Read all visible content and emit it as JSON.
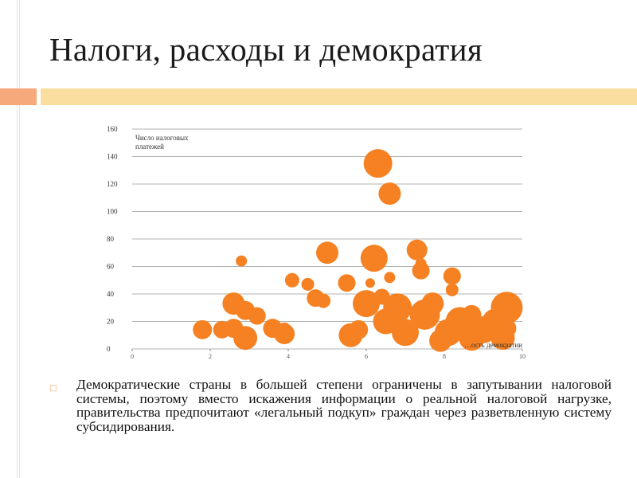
{
  "slide": {
    "title": "Налоги, расходы и демократия",
    "bullet_icon": "square-bullet-icon",
    "bullet_text": "Демократические страны в большей степени ограничены в запутывании налоговой системы, поэтому вместо искажения информации о реальной налоговой нагрузке, правительства предпочитают «легальный подкуп» граждан через разветвленную систему субсидирования.",
    "colors": {
      "accent_bar_left": "#f6a97a",
      "accent_bar_right": "#f9dea0",
      "bubble": "#f58122"
    }
  },
  "chart_data": {
    "type": "scatter",
    "ylabel": "Число налоговых платежей",
    "xlabel": "…ость демократии",
    "ylim": [
      0,
      160
    ],
    "xlim": [
      0,
      10
    ],
    "yticks": [
      "0",
      "20",
      "40",
      "60",
      "80",
      "100",
      "120",
      "140",
      "160"
    ],
    "xticks": [
      "0",
      "2",
      "4",
      "6",
      "8",
      "10"
    ],
    "grid": true,
    "points": [
      {
        "x": 1.8,
        "y": 14,
        "size": 12
      },
      {
        "x": 2.3,
        "y": 14,
        "size": 11
      },
      {
        "x": 2.6,
        "y": 33,
        "size": 14
      },
      {
        "x": 2.6,
        "y": 15,
        "size": 12
      },
      {
        "x": 2.8,
        "y": 64,
        "size": 7
      },
      {
        "x": 2.9,
        "y": 8,
        "size": 15
      },
      {
        "x": 2.9,
        "y": 28,
        "size": 12
      },
      {
        "x": 3.2,
        "y": 24,
        "size": 11
      },
      {
        "x": 3.6,
        "y": 15,
        "size": 12
      },
      {
        "x": 3.9,
        "y": 11,
        "size": 13
      },
      {
        "x": 3.9,
        "y": 14,
        "size": 9
      },
      {
        "x": 4.1,
        "y": 50,
        "size": 9
      },
      {
        "x": 4.5,
        "y": 47,
        "size": 8
      },
      {
        "x": 4.7,
        "y": 37,
        "size": 11
      },
      {
        "x": 4.9,
        "y": 35,
        "size": 9
      },
      {
        "x": 5.0,
        "y": 70,
        "size": 14
      },
      {
        "x": 5.5,
        "y": 48,
        "size": 11
      },
      {
        "x": 5.6,
        "y": 10,
        "size": 15
      },
      {
        "x": 5.8,
        "y": 14,
        "size": 12
      },
      {
        "x": 6.0,
        "y": 33,
        "size": 17
      },
      {
        "x": 6.1,
        "y": 48,
        "size": 6
      },
      {
        "x": 6.2,
        "y": 66,
        "size": 17
      },
      {
        "x": 6.3,
        "y": 135,
        "size": 18
      },
      {
        "x": 6.4,
        "y": 38,
        "size": 10
      },
      {
        "x": 6.5,
        "y": 20,
        "size": 16
      },
      {
        "x": 6.6,
        "y": 113,
        "size": 14
      },
      {
        "x": 6.6,
        "y": 52,
        "size": 7
      },
      {
        "x": 6.8,
        "y": 30,
        "size": 18
      },
      {
        "x": 7.0,
        "y": 12,
        "size": 17
      },
      {
        "x": 7.3,
        "y": 72,
        "size": 13
      },
      {
        "x": 7.4,
        "y": 57,
        "size": 11
      },
      {
        "x": 7.4,
        "y": 62,
        "size": 7
      },
      {
        "x": 7.5,
        "y": 25,
        "size": 19
      },
      {
        "x": 7.7,
        "y": 33,
        "size": 14
      },
      {
        "x": 7.9,
        "y": 6,
        "size": 14
      },
      {
        "x": 8.1,
        "y": 12,
        "size": 17
      },
      {
        "x": 8.2,
        "y": 43,
        "size": 8
      },
      {
        "x": 8.2,
        "y": 53,
        "size": 11
      },
      {
        "x": 8.4,
        "y": 20,
        "size": 18
      },
      {
        "x": 8.7,
        "y": 8,
        "size": 16
      },
      {
        "x": 8.7,
        "y": 25,
        "size": 12
      },
      {
        "x": 9.0,
        "y": 14,
        "size": 17
      },
      {
        "x": 9.3,
        "y": 20,
        "size": 16
      },
      {
        "x": 9.5,
        "y": 8,
        "size": 15
      },
      {
        "x": 9.6,
        "y": 30,
        "size": 20
      },
      {
        "x": 9.6,
        "y": 15,
        "size": 12
      }
    ]
  }
}
